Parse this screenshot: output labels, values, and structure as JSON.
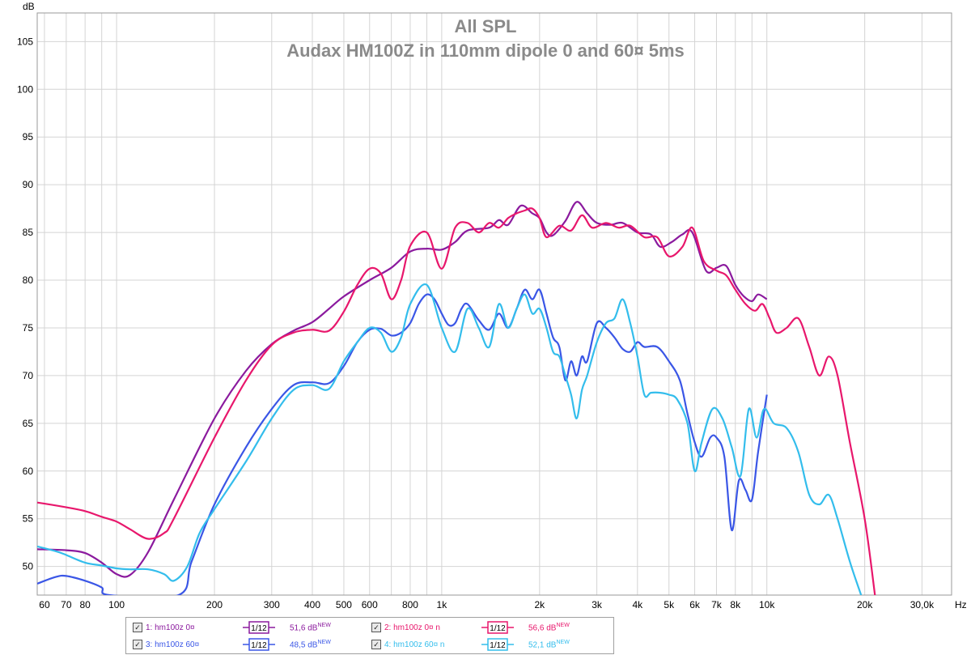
{
  "chart_data": {
    "type": "line",
    "title": "All SPL",
    "subtitle": "Audax HM100Z in 110mm dipole 0 and 60¤ 5ms",
    "ylabel": "dB",
    "xlabel": "Hz",
    "x_scale": "log",
    "xlim": [
      57,
      37000
    ],
    "ylim": [
      47,
      108
    ],
    "grid": true,
    "y_ticks": [
      50,
      55,
      60,
      65,
      70,
      75,
      80,
      85,
      90,
      95,
      100,
      105
    ],
    "x_ticks": [
      {
        "v": 60,
        "label": "60"
      },
      {
        "v": 70,
        "label": "70"
      },
      {
        "v": 80,
        "label": "80"
      },
      {
        "v": 100,
        "label": "100"
      },
      {
        "v": 200,
        "label": "200"
      },
      {
        "v": 300,
        "label": "300"
      },
      {
        "v": 400,
        "label": "400"
      },
      {
        "v": 500,
        "label": "500"
      },
      {
        "v": 600,
        "label": "600"
      },
      {
        "v": 800,
        "label": "800"
      },
      {
        "v": 1000,
        "label": "1k"
      },
      {
        "v": 2000,
        "label": "2k"
      },
      {
        "v": 3000,
        "label": "3k"
      },
      {
        "v": 4000,
        "label": "4k"
      },
      {
        "v": 5000,
        "label": "5k"
      },
      {
        "v": 6000,
        "label": "6k"
      },
      {
        "v": 7000,
        "label": "7k"
      },
      {
        "v": 8000,
        "label": "8k"
      },
      {
        "v": 10000,
        "label": "10k"
      },
      {
        "v": 20000,
        "label": "20k"
      },
      {
        "v": 30000,
        "label": "30,0k"
      }
    ],
    "x_unit": "Hz",
    "series": [
      {
        "name": "1: hm100z 0¤",
        "color": "#8b1a9e",
        "points": [
          [
            57,
            51.8
          ],
          [
            70,
            51.7
          ],
          [
            80,
            51.4
          ],
          [
            90,
            50.4
          ],
          [
            100,
            49.2
          ],
          [
            110,
            49.1
          ],
          [
            125,
            51.5
          ],
          [
            150,
            57
          ],
          [
            200,
            65.5
          ],
          [
            250,
            70.5
          ],
          [
            300,
            73.3
          ],
          [
            350,
            74.7
          ],
          [
            400,
            75.6
          ],
          [
            450,
            77
          ],
          [
            500,
            78.3
          ],
          [
            600,
            80
          ],
          [
            700,
            81.3
          ],
          [
            800,
            83
          ],
          [
            900,
            83.3
          ],
          [
            1000,
            83.2
          ],
          [
            1100,
            84
          ],
          [
            1200,
            85.2
          ],
          [
            1400,
            85.5
          ],
          [
            1500,
            86.3
          ],
          [
            1600,
            85.8
          ],
          [
            1750,
            87.8
          ],
          [
            1900,
            87
          ],
          [
            2000,
            86.5
          ],
          [
            2100,
            85
          ],
          [
            2200,
            84.7
          ],
          [
            2400,
            86.2
          ],
          [
            2600,
            88.2
          ],
          [
            2800,
            87
          ],
          [
            3000,
            86
          ],
          [
            3300,
            85.8
          ],
          [
            3600,
            86
          ],
          [
            4000,
            85
          ],
          [
            4400,
            84.8
          ],
          [
            4700,
            83.5
          ],
          [
            5100,
            84
          ],
          [
            5500,
            84.8
          ],
          [
            5900,
            85
          ],
          [
            6500,
            81
          ],
          [
            7000,
            81.3
          ],
          [
            7500,
            81.5
          ],
          [
            8000,
            79.5
          ],
          [
            8500,
            78.3
          ],
          [
            9000,
            77.8
          ],
          [
            9400,
            78.5
          ],
          [
            10000,
            78
          ]
        ]
      },
      {
        "name": "2: hm100z 0¤ n",
        "color": "#e8176c",
        "points": [
          [
            57,
            56.7
          ],
          [
            70,
            56.2
          ],
          [
            80,
            55.8
          ],
          [
            90,
            55.2
          ],
          [
            100,
            54.7
          ],
          [
            110,
            53.9
          ],
          [
            125,
            52.9
          ],
          [
            140,
            53.5
          ],
          [
            150,
            55
          ],
          [
            200,
            63.5
          ],
          [
            250,
            69.5
          ],
          [
            300,
            73.2
          ],
          [
            350,
            74.5
          ],
          [
            400,
            74.8
          ],
          [
            450,
            74.7
          ],
          [
            500,
            76.7
          ],
          [
            550,
            79.5
          ],
          [
            600,
            81.2
          ],
          [
            650,
            80.7
          ],
          [
            700,
            78
          ],
          [
            750,
            80
          ],
          [
            800,
            83.6
          ],
          [
            900,
            85
          ],
          [
            1000,
            81.2
          ],
          [
            1100,
            85.5
          ],
          [
            1200,
            86
          ],
          [
            1300,
            85
          ],
          [
            1400,
            86
          ],
          [
            1500,
            85.5
          ],
          [
            1600,
            86.5
          ],
          [
            1700,
            87
          ],
          [
            1800,
            87.3
          ],
          [
            1900,
            87.5
          ],
          [
            2000,
            86.5
          ],
          [
            2100,
            84.5
          ],
          [
            2300,
            85.7
          ],
          [
            2500,
            85.2
          ],
          [
            2700,
            86.8
          ],
          [
            2900,
            85.5
          ],
          [
            3200,
            86
          ],
          [
            3500,
            85.5
          ],
          [
            3800,
            85.7
          ],
          [
            4200,
            84.5
          ],
          [
            4600,
            84.5
          ],
          [
            5000,
            82.5
          ],
          [
            5500,
            83.5
          ],
          [
            5900,
            85.5
          ],
          [
            6400,
            82
          ],
          [
            7000,
            81
          ],
          [
            7500,
            80.5
          ],
          [
            8000,
            79
          ],
          [
            8600,
            77.5
          ],
          [
            9200,
            76.8
          ],
          [
            9700,
            77.5
          ],
          [
            10200,
            76
          ],
          [
            10700,
            74.5
          ],
          [
            11500,
            75
          ],
          [
            12500,
            76
          ],
          [
            13500,
            73
          ],
          [
            14500,
            70
          ],
          [
            15500,
            72
          ],
          [
            16500,
            70
          ],
          [
            18000,
            63
          ],
          [
            20000,
            55
          ],
          [
            21500,
            47
          ]
        ]
      },
      {
        "name": "3: hm100z 60¤",
        "color": "#3a56e6",
        "points": [
          [
            57,
            48.2
          ],
          [
            65,
            48.9
          ],
          [
            70,
            49
          ],
          [
            80,
            48.5
          ],
          [
            90,
            47.8
          ],
          [
            95,
            47
          ],
          [
            155,
            47
          ],
          [
            170,
            50.5
          ],
          [
            200,
            56.5
          ],
          [
            250,
            62.5
          ],
          [
            300,
            66.5
          ],
          [
            350,
            69
          ],
          [
            400,
            69.3
          ],
          [
            450,
            69.2
          ],
          [
            500,
            71
          ],
          [
            550,
            73.5
          ],
          [
            600,
            74.8
          ],
          [
            650,
            74.9
          ],
          [
            700,
            74.2
          ],
          [
            750,
            74.5
          ],
          [
            800,
            75.5
          ],
          [
            850,
            77.5
          ],
          [
            900,
            78.5
          ],
          [
            950,
            78
          ],
          [
            1000,
            76.5
          ],
          [
            1050,
            75.3
          ],
          [
            1100,
            75.5
          ],
          [
            1150,
            77
          ],
          [
            1200,
            77.5
          ],
          [
            1300,
            75.8
          ],
          [
            1400,
            74.8
          ],
          [
            1500,
            76.5
          ],
          [
            1600,
            75
          ],
          [
            1700,
            77
          ],
          [
            1800,
            79
          ],
          [
            1900,
            78
          ],
          [
            2000,
            79
          ],
          [
            2100,
            76.5
          ],
          [
            2200,
            74
          ],
          [
            2300,
            73
          ],
          [
            2400,
            69.5
          ],
          [
            2500,
            71.5
          ],
          [
            2600,
            70
          ],
          [
            2700,
            72
          ],
          [
            2800,
            71.5
          ],
          [
            3000,
            75.5
          ],
          [
            3200,
            75
          ],
          [
            3400,
            74
          ],
          [
            3600,
            72.8
          ],
          [
            3800,
            72.5
          ],
          [
            4000,
            73.5
          ],
          [
            4200,
            73
          ],
          [
            4600,
            73
          ],
          [
            5000,
            71.5
          ],
          [
            5400,
            69.5
          ],
          [
            5700,
            66
          ],
          [
            6000,
            63
          ],
          [
            6300,
            61.5
          ],
          [
            6700,
            63.5
          ],
          [
            7000,
            63.5
          ],
          [
            7400,
            61.5
          ],
          [
            7800,
            53.8
          ],
          [
            8200,
            59
          ],
          [
            8600,
            58
          ],
          [
            9000,
            57
          ],
          [
            9400,
            62
          ],
          [
            10000,
            68
          ]
        ]
      },
      {
        "name": "4: hm100z 60¤ n",
        "color": "#33bdec",
        "points": [
          [
            57,
            52.1
          ],
          [
            65,
            51.6
          ],
          [
            70,
            51.2
          ],
          [
            80,
            50.4
          ],
          [
            90,
            50.1
          ],
          [
            100,
            49.8
          ],
          [
            110,
            49.7
          ],
          [
            125,
            49.7
          ],
          [
            140,
            49.2
          ],
          [
            150,
            48.5
          ],
          [
            165,
            50
          ],
          [
            180,
            53.5
          ],
          [
            200,
            56
          ],
          [
            250,
            61
          ],
          [
            300,
            65.5
          ],
          [
            350,
            68.5
          ],
          [
            400,
            69
          ],
          [
            450,
            68.6
          ],
          [
            500,
            71.5
          ],
          [
            550,
            73.5
          ],
          [
            600,
            75
          ],
          [
            650,
            74.5
          ],
          [
            700,
            72.5
          ],
          [
            750,
            74
          ],
          [
            800,
            77.5
          ],
          [
            900,
            79.5
          ],
          [
            1000,
            75
          ],
          [
            1100,
            72.5
          ],
          [
            1200,
            77
          ],
          [
            1300,
            75
          ],
          [
            1400,
            73
          ],
          [
            1500,
            77.5
          ],
          [
            1600,
            75
          ],
          [
            1700,
            77
          ],
          [
            1800,
            78.5
          ],
          [
            1900,
            76.5
          ],
          [
            2000,
            77
          ],
          [
            2100,
            75
          ],
          [
            2200,
            72.5
          ],
          [
            2300,
            72
          ],
          [
            2400,
            70
          ],
          [
            2500,
            68
          ],
          [
            2600,
            65.5
          ],
          [
            2700,
            68.5
          ],
          [
            2800,
            70
          ],
          [
            3000,
            73.5
          ],
          [
            3200,
            75.5
          ],
          [
            3400,
            76
          ],
          [
            3600,
            78
          ],
          [
            3800,
            75.5
          ],
          [
            4000,
            72
          ],
          [
            4200,
            68
          ],
          [
            4400,
            68.2
          ],
          [
            4700,
            68.2
          ],
          [
            5000,
            68
          ],
          [
            5300,
            67.5
          ],
          [
            5700,
            65
          ],
          [
            6000,
            60
          ],
          [
            6300,
            63
          ],
          [
            6800,
            66.5
          ],
          [
            7300,
            65.5
          ],
          [
            7800,
            62.5
          ],
          [
            8300,
            59.5
          ],
          [
            8800,
            66.5
          ],
          [
            9300,
            63.5
          ],
          [
            9800,
            66.5
          ],
          [
            10500,
            65
          ],
          [
            11500,
            64.5
          ],
          [
            12500,
            62
          ],
          [
            13500,
            57.5
          ],
          [
            14500,
            56.5
          ],
          [
            15500,
            57.5
          ],
          [
            16500,
            55
          ],
          [
            18000,
            50.5
          ],
          [
            19500,
            47
          ]
        ]
      }
    ]
  },
  "legend": [
    {
      "check": "✓",
      "name": "1: hm100z 0¤",
      "smoothing": "1/12",
      "value": "51,6 dB",
      "badge": "NEW",
      "color": "#8b1a9e"
    },
    {
      "check": "✓",
      "name": "2: hm100z 0¤ n",
      "smoothing": "1/12",
      "value": "56,6 dB",
      "badge": "NEW",
      "color": "#e8176c"
    },
    {
      "check": "✓",
      "name": "3: hm100z 60¤",
      "smoothing": "1/12",
      "value": "48,5 dB",
      "badge": "NEW",
      "color": "#3a56e6"
    },
    {
      "check": "✓",
      "name": "4: hm100z 60¤ n",
      "smoothing": "1/12",
      "value": "52,1 dB",
      "badge": "NEW",
      "color": "#33bdec"
    }
  ]
}
